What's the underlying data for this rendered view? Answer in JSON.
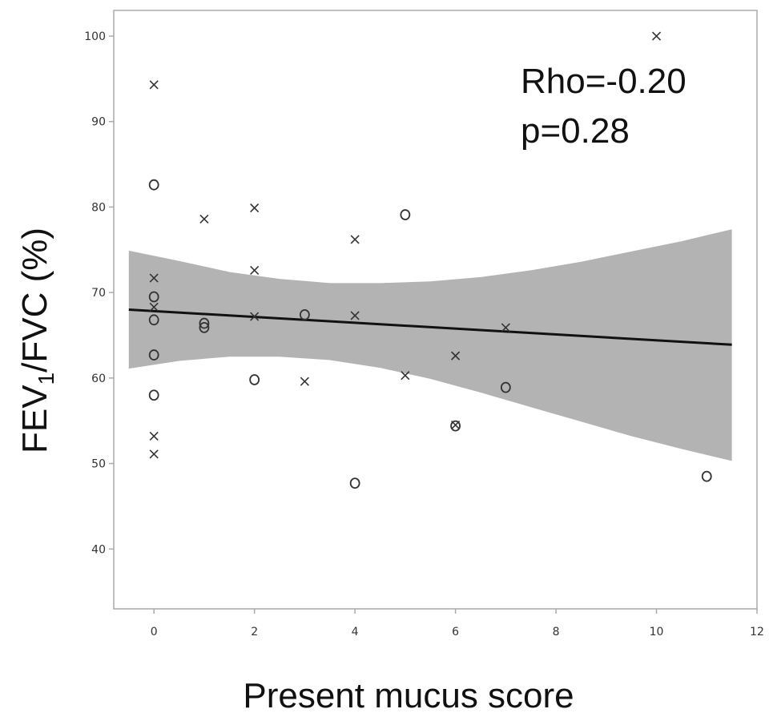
{
  "chart_data": {
    "type": "scatter",
    "xlabel": "Present mucus score",
    "ylabel": {
      "main": "FEV",
      "subscript": "1",
      "rest": "/FVC (%)"
    },
    "xlim": [
      -0.8,
      12
    ],
    "ylim": [
      33,
      103
    ],
    "x_ticks": [
      0,
      2,
      4,
      6,
      8,
      10,
      12
    ],
    "y_ticks": [
      40,
      50,
      60,
      70,
      80,
      90,
      100
    ],
    "grid": false,
    "annotations": {
      "rho": "Rho=-0.20",
      "p": "p=0.28"
    },
    "series": [
      {
        "marker": "x",
        "points": [
          [
            0,
            94.3
          ],
          [
            0,
            71.7
          ],
          [
            0,
            68.3
          ],
          [
            0,
            53.2
          ],
          [
            0,
            51.1
          ],
          [
            1,
            78.6
          ],
          [
            2,
            79.9
          ],
          [
            2,
            72.6
          ],
          [
            2,
            67.2
          ],
          [
            3,
            59.6
          ],
          [
            4,
            76.2
          ],
          [
            4,
            67.3
          ],
          [
            5,
            60.3
          ],
          [
            6,
            62.6
          ],
          [
            6,
            54.5
          ],
          [
            7,
            65.9
          ],
          [
            10,
            100.0
          ]
        ]
      },
      {
        "marker": "o",
        "points": [
          [
            0,
            82.6
          ],
          [
            0,
            69.5
          ],
          [
            0,
            66.8
          ],
          [
            0,
            62.7
          ],
          [
            0,
            58.0
          ],
          [
            1,
            66.4
          ],
          [
            1,
            65.9
          ],
          [
            2,
            59.8
          ],
          [
            3,
            67.4
          ],
          [
            4,
            47.7
          ],
          [
            5,
            79.1
          ],
          [
            6,
            54.4
          ],
          [
            7,
            58.9
          ],
          [
            11,
            48.5
          ]
        ]
      }
    ],
    "regression": {
      "x": [
        -0.5,
        11.5
      ],
      "y": [
        68.0,
        63.9
      ]
    },
    "confidence_band": {
      "x": [
        -0.5,
        0.5,
        1.5,
        2.5,
        3.5,
        4.5,
        5.5,
        6.5,
        7.5,
        8.5,
        9.5,
        10.5,
        11.5
      ],
      "upper": [
        74.9,
        73.7,
        72.4,
        71.6,
        71.1,
        71.1,
        71.3,
        71.8,
        72.6,
        73.6,
        74.8,
        76.0,
        77.4
      ],
      "lower": [
        61.1,
        62.0,
        62.5,
        62.5,
        62.1,
        61.2,
        59.9,
        58.3,
        56.6,
        54.9,
        53.2,
        51.7,
        50.3
      ]
    },
    "colors": {
      "band": "#b3b3b3",
      "line": "#111111",
      "markers": "#333333",
      "axis": "#aaaaaa"
    }
  }
}
